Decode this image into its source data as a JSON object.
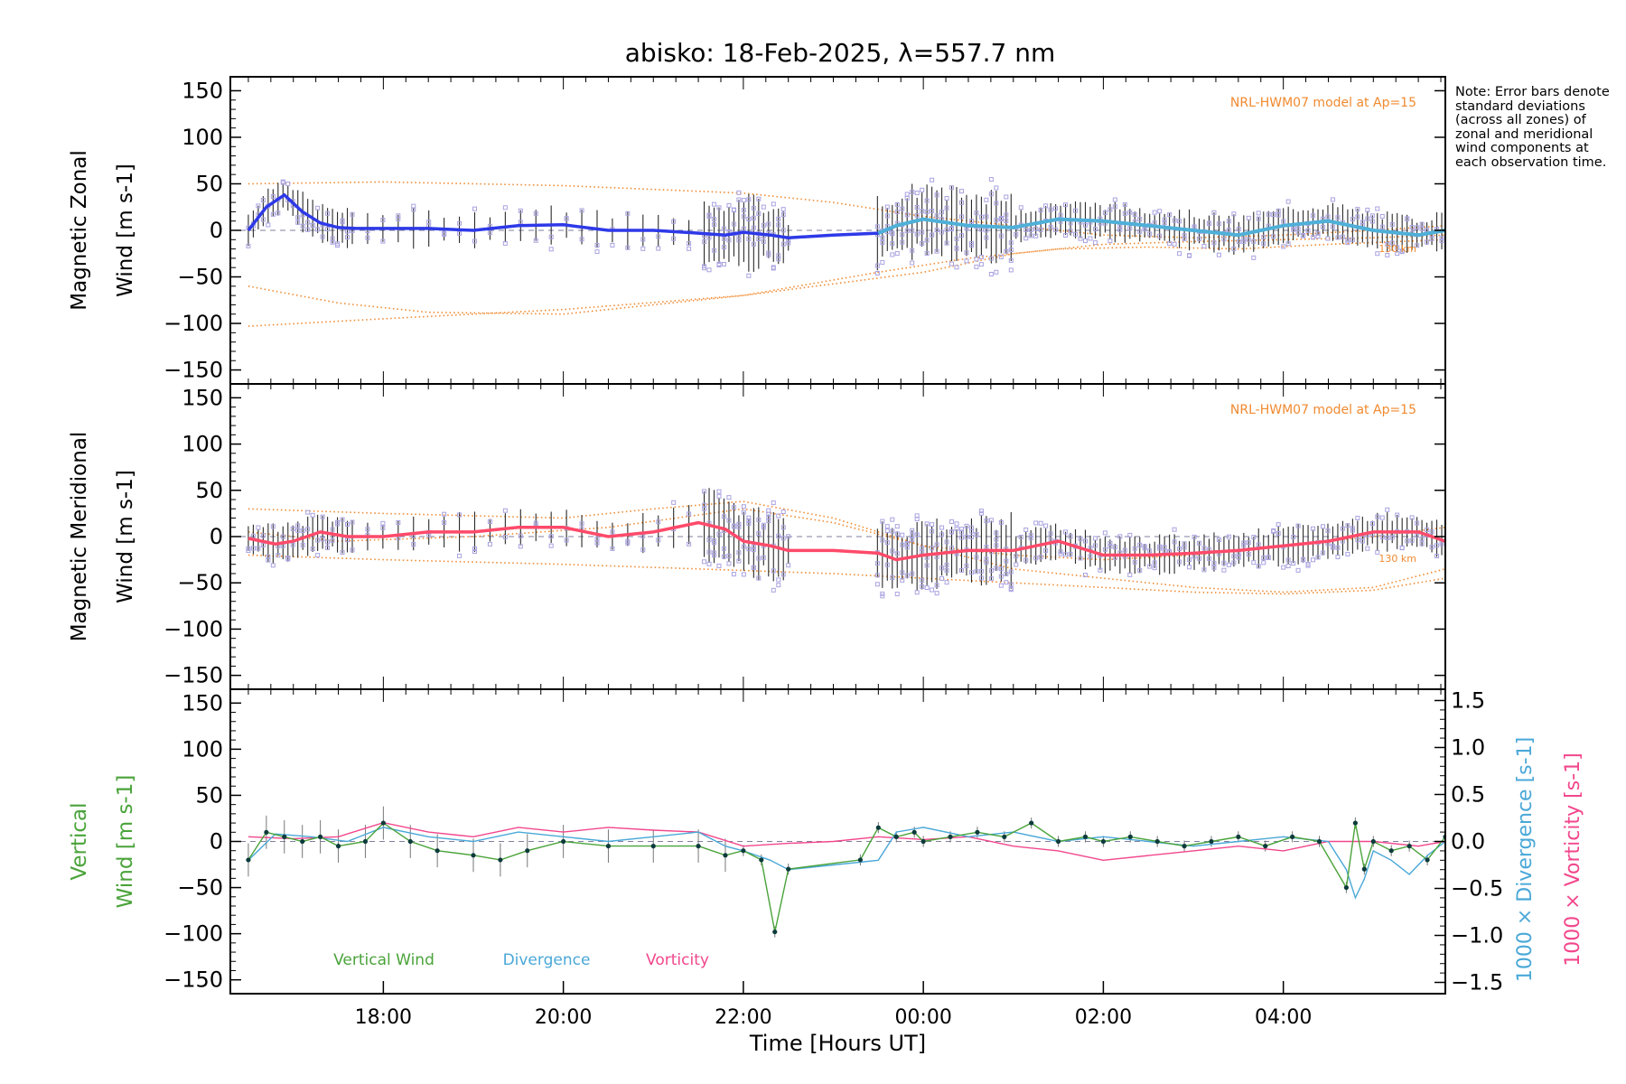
{
  "title": "abisko: 18-Feb-2025, λ=557.7 nm",
  "note": "Note: Error bars denote standard deviations (across all zones) of zonal and meridional wind components at each observation time.",
  "colors": {
    "model": "#f08a30",
    "zonal_line": "#2e39e8",
    "zonal_fit": "#4fb0d8",
    "meridional_line": "#ff4a6a",
    "scatter": "#a9a3e0",
    "vertical": "#4aa33a",
    "divergence": "#4aa8d8",
    "vorticity": "#f2478c",
    "dashed": "#7f7f9f"
  },
  "chart_data": [
    {
      "type": "line",
      "panel": "zonal",
      "ylabel_line1": "Magnetic Zonal",
      "ylabel_line2": "Wind [m s",
      "ylabel_sup": "-1",
      "ylabel_close": "]",
      "ylim": [
        -165,
        165
      ],
      "yticks": [
        "150",
        "100",
        "50",
        "0",
        "−50",
        "−100",
        "−150"
      ],
      "ytick_values": [
        150,
        100,
        50,
        0,
        -50,
        -100,
        -150
      ],
      "model_label": "NRL-HWM07 model at Ap=15",
      "height_label": "130 km",
      "x": [
        16.5,
        16.7,
        16.9,
        17.1,
        17.3,
        17.5,
        17.7,
        18.0,
        18.5,
        19.0,
        19.5,
        20.0,
        20.5,
        21.0,
        21.5,
        21.8,
        22.0,
        22.3,
        22.5,
        23.0,
        23.5,
        23.7,
        24.0,
        24.5,
        25.0,
        25.5,
        26.0,
        26.5,
        27.0,
        27.5,
        28.0,
        28.5,
        29.0,
        29.5,
        29.8
      ],
      "y": [
        0,
        25,
        38,
        20,
        8,
        3,
        2,
        2,
        2,
        0,
        5,
        6,
        0,
        0,
        -3,
        -5,
        -2,
        -5,
        -8,
        -5,
        -3,
        5,
        12,
        5,
        3,
        12,
        10,
        5,
        0,
        -5,
        5,
        10,
        0,
        -5,
        0
      ],
      "model_curves": [
        {
          "x": [
            16.5,
            18,
            20,
            22,
            23,
            24,
            25,
            26,
            27,
            28,
            29,
            29.8
          ],
          "y": [
            50,
            52,
            48,
            40,
            30,
            15,
            5,
            -5,
            -8,
            -5,
            0,
            5
          ]
        },
        {
          "x": [
            16.5,
            17.5,
            18.5,
            20,
            22,
            23.5,
            24.5,
            25.5,
            26.5,
            27.5,
            28.5,
            29.8
          ],
          "y": [
            -60,
            -78,
            -88,
            -90,
            -70,
            -45,
            -30,
            -20,
            -18,
            -20,
            -15,
            -10
          ]
        },
        {
          "x": [
            16.5,
            18,
            20,
            22,
            24,
            25,
            26,
            27,
            28,
            29,
            29.8
          ],
          "y": [
            -103,
            -95,
            -85,
            -70,
            -45,
            -25,
            -15,
            -12,
            -10,
            -8,
            -5
          ]
        }
      ]
    },
    {
      "type": "line",
      "panel": "meridional",
      "ylabel_line1": "Magnetic Meridional",
      "ylabel_line2": "Wind [m s",
      "ylabel_sup": "-1",
      "ylabel_close": "]",
      "ylim": [
        -165,
        165
      ],
      "yticks": [
        "150",
        "100",
        "50",
        "0",
        "−50",
        "−100",
        "−150"
      ],
      "ytick_values": [
        150,
        100,
        50,
        0,
        -50,
        -100,
        -150
      ],
      "model_label": "NRL-HWM07 model at Ap=15",
      "height_label": "130 km",
      "x": [
        16.5,
        16.8,
        17.0,
        17.3,
        17.6,
        18.0,
        18.5,
        19.0,
        19.5,
        20.0,
        20.5,
        21.0,
        21.5,
        21.8,
        22.0,
        22.3,
        22.5,
        23.0,
        23.5,
        23.7,
        24.0,
        24.5,
        25.0,
        25.5,
        26.0,
        26.5,
        27.0,
        27.5,
        28.0,
        28.5,
        29.0,
        29.5,
        29.8
      ],
      "y": [
        -2,
        -8,
        -5,
        5,
        0,
        0,
        5,
        5,
        10,
        10,
        0,
        5,
        15,
        8,
        -5,
        -10,
        -15,
        -15,
        -18,
        -25,
        -20,
        -15,
        -15,
        -5,
        -20,
        -20,
        -18,
        -15,
        -10,
        -5,
        5,
        5,
        -5
      ],
      "model_curves": [
        {
          "x": [
            16.5,
            18,
            20,
            21,
            22,
            23,
            24,
            25,
            26,
            27,
            28,
            29,
            29.8
          ],
          "y": [
            30,
            25,
            20,
            30,
            38,
            20,
            -10,
            -35,
            -45,
            -55,
            -60,
            -55,
            -35
          ]
        },
        {
          "x": [
            16.5,
            17.5,
            19,
            20.5,
            22,
            23,
            24,
            25,
            26,
            27,
            28,
            29,
            29.8
          ],
          "y": [
            5,
            -5,
            0,
            10,
            30,
            15,
            -10,
            -20,
            -25,
            -20,
            -10,
            0,
            10
          ]
        },
        {
          "x": [
            16.5,
            18,
            20,
            21.5,
            23,
            24,
            25,
            26,
            27,
            28,
            29,
            29.8
          ],
          "y": [
            -20,
            -25,
            -30,
            -35,
            -40,
            -45,
            -50,
            -55,
            -60,
            -62,
            -58,
            -45
          ]
        }
      ]
    },
    {
      "type": "line",
      "panel": "vertical",
      "ylabel_line1": "Vertical",
      "ylabel_line2": "Wind [m s",
      "ylabel_sup": "-1",
      "ylabel_close": "]",
      "ylim": [
        -165,
        165
      ],
      "yticks": [
        "150",
        "100",
        "50",
        "0",
        "−50",
        "−100",
        "−150"
      ],
      "ytick_values": [
        150,
        100,
        50,
        0,
        -50,
        -100,
        -150
      ],
      "y2lim": [
        -1.62,
        1.62
      ],
      "y2ticks": [
        "1.5",
        "1.0",
        "0.5",
        "0.0",
        "−0.5",
        "−1.0",
        "−1.5"
      ],
      "y2tick_values": [
        1.5,
        1.0,
        0.5,
        0.0,
        -0.5,
        -1.0,
        -1.5
      ],
      "y2label_div": "1000 × Divergence [s",
      "y2label_vort": "1000 × Vorticity [s",
      "y2label_sup": "-1",
      "y2label_close": "]",
      "xlabel": "Time [Hours UT]",
      "xticks": [
        "18:00",
        "20:00",
        "22:00",
        "00:00",
        "02:00",
        "04:00"
      ],
      "xtick_values": [
        18,
        20,
        22,
        24,
        26,
        28
      ],
      "xlim": [
        16.3,
        29.8
      ],
      "legend": [
        "Vertical Wind",
        "Divergence",
        "Vorticity"
      ],
      "series": [
        {
          "name": "Vertical Wind",
          "x": [
            16.5,
            16.7,
            16.9,
            17.1,
            17.3,
            17.5,
            17.8,
            18.0,
            18.3,
            18.6,
            19.0,
            19.3,
            19.6,
            20.0,
            20.5,
            21.0,
            21.5,
            21.8,
            22.0,
            22.2,
            22.35,
            22.5,
            23.3,
            23.5,
            23.7,
            23.9,
            24.0,
            24.3,
            24.6,
            24.9,
            25.2,
            25.5,
            25.8,
            26.0,
            26.3,
            26.6,
            26.9,
            27.2,
            27.5,
            27.8,
            28.1,
            28.4,
            28.7,
            28.8,
            28.9,
            29.0,
            29.2,
            29.4,
            29.6,
            29.8
          ],
          "y": [
            -20,
            10,
            5,
            0,
            5,
            -5,
            0,
            20,
            0,
            -10,
            -15,
            -20,
            -10,
            0,
            -5,
            -5,
            -5,
            -15,
            -10,
            -20,
            -98,
            -30,
            -20,
            15,
            5,
            10,
            0,
            5,
            10,
            5,
            20,
            0,
            5,
            0,
            5,
            0,
            -5,
            0,
            5,
            -5,
            5,
            0,
            -50,
            20,
            -30,
            0,
            -10,
            -5,
            -20,
            5
          ]
        },
        {
          "name": "Divergence",
          "x": [
            16.5,
            16.8,
            17.2,
            17.6,
            18.0,
            18.5,
            19.0,
            19.5,
            20.0,
            20.5,
            21.0,
            21.5,
            21.8,
            22.0,
            22.3,
            22.5,
            23.0,
            23.5,
            23.7,
            24.0,
            24.5,
            25.0,
            25.5,
            26.0,
            26.5,
            27.0,
            27.5,
            28.0,
            28.5,
            28.7,
            28.8,
            28.9,
            29.0,
            29.2,
            29.4,
            29.6,
            29.8
          ],
          "y": [
            -0.2,
            0.08,
            0.05,
            0.0,
            0.15,
            0.05,
            0.0,
            0.1,
            0.05,
            0.0,
            0.05,
            0.1,
            -0.05,
            -0.1,
            -0.2,
            -0.3,
            -0.25,
            -0.2,
            0.1,
            0.15,
            0.05,
            0.1,
            0.0,
            0.05,
            0.0,
            -0.05,
            0.0,
            0.05,
            0.0,
            -0.3,
            -0.6,
            -0.4,
            -0.1,
            -0.2,
            -0.35,
            -0.15,
            0.0
          ]
        },
        {
          "name": "Vorticity",
          "x": [
            16.5,
            17.0,
            17.5,
            18.0,
            18.5,
            19.0,
            19.5,
            20.0,
            20.5,
            21.0,
            21.5,
            22.0,
            22.5,
            23.0,
            23.5,
            24.0,
            24.5,
            25.0,
            25.5,
            26.0,
            26.5,
            27.0,
            27.5,
            28.0,
            28.5,
            29.0,
            29.5,
            29.8
          ],
          "y": [
            0.05,
            0.03,
            0.05,
            0.2,
            0.1,
            0.05,
            0.15,
            0.1,
            0.15,
            0.12,
            0.1,
            -0.05,
            -0.02,
            0.0,
            0.05,
            0.02,
            0.05,
            -0.05,
            -0.1,
            -0.2,
            -0.15,
            -0.1,
            -0.05,
            -0.1,
            0.0,
            0.0,
            -0.05,
            0.0
          ]
        }
      ]
    }
  ]
}
